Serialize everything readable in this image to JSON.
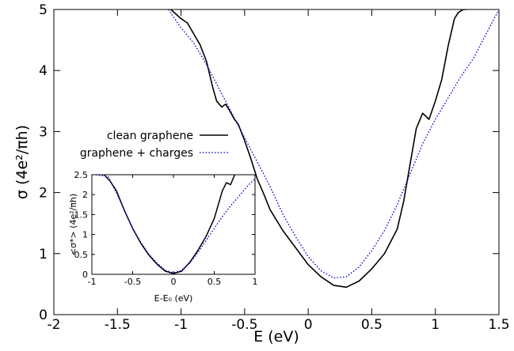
{
  "chart_data": [
    {
      "type": "line",
      "panel": "main",
      "xlabel": "E (eV)",
      "ylabel": "σ (4e²/πh)",
      "xlim": [
        -2,
        1.5
      ],
      "ylim": [
        0,
        5
      ],
      "xticks": [
        -2,
        -1.5,
        -1,
        -0.5,
        0,
        0.5,
        1,
        1.5
      ],
      "xtick_labels": [
        "-2",
        "-1.5",
        "-1",
        "-0.5",
        "0",
        "0.5",
        "1",
        "1.5"
      ],
      "yticks": [
        0,
        1,
        2,
        3,
        4,
        5
      ],
      "ytick_labels": [
        "0",
        "1",
        "2",
        "3",
        "4",
        "5"
      ],
      "grid": false,
      "legend": {
        "placement": "left-middle",
        "entries": [
          "clean graphene",
          "graphene + charges"
        ]
      },
      "series": [
        {
          "name": "clean graphene",
          "style": "solid",
          "color": "#000000",
          "x": [
            -1.08,
            -1.0,
            -0.95,
            -0.9,
            -0.85,
            -0.8,
            -0.75,
            -0.72,
            -0.68,
            -0.65,
            -0.62,
            -0.58,
            -0.55,
            -0.5,
            -0.45,
            -0.4,
            -0.35,
            -0.3,
            -0.2,
            -0.1,
            0.0,
            0.1,
            0.2,
            0.3,
            0.4,
            0.5,
            0.6,
            0.7,
            0.75,
            0.8,
            0.85,
            0.9,
            0.95,
            1.0,
            1.05,
            1.1,
            1.15,
            1.18,
            1.22,
            1.25
          ],
          "y": [
            5.0,
            4.85,
            4.78,
            4.6,
            4.42,
            4.15,
            3.72,
            3.5,
            3.4,
            3.45,
            3.35,
            3.2,
            3.12,
            2.85,
            2.55,
            2.22,
            1.98,
            1.72,
            1.38,
            1.1,
            0.82,
            0.62,
            0.48,
            0.45,
            0.55,
            0.75,
            1.0,
            1.4,
            1.85,
            2.45,
            3.05,
            3.3,
            3.2,
            3.5,
            3.85,
            4.4,
            4.85,
            4.95,
            5.0,
            5.0
          ]
        },
        {
          "name": "graphene + charges",
          "style": "dotted",
          "color": "#0000cc",
          "x": [
            -1.1,
            -1.0,
            -0.9,
            -0.8,
            -0.7,
            -0.6,
            -0.5,
            -0.4,
            -0.3,
            -0.2,
            -0.1,
            0.0,
            0.1,
            0.2,
            0.3,
            0.4,
            0.5,
            0.6,
            0.7,
            0.8,
            0.9,
            1.0,
            1.1,
            1.2,
            1.3,
            1.4,
            1.5
          ],
          "y": [
            5.0,
            4.7,
            4.45,
            4.1,
            3.7,
            3.3,
            2.9,
            2.5,
            2.1,
            1.65,
            1.28,
            0.95,
            0.72,
            0.6,
            0.62,
            0.78,
            1.05,
            1.38,
            1.8,
            2.3,
            2.8,
            3.2,
            3.55,
            3.9,
            4.2,
            4.6,
            5.0
          ]
        }
      ]
    },
    {
      "type": "line",
      "panel": "inset",
      "xlabel": "E-E₀ (eV)",
      "ylabel": "<σ*> (4e²/πh)",
      "xlim": [
        -1,
        1
      ],
      "ylim": [
        0,
        2.5
      ],
      "xticks": [
        -1,
        -0.5,
        0,
        0.5,
        1
      ],
      "xtick_labels": [
        "-1",
        "-0.5",
        "0",
        "0.5",
        "1"
      ],
      "yticks": [
        0,
        0.5,
        1,
        1.5,
        2,
        2.5
      ],
      "ytick_labels": [
        "0",
        "0.5",
        "1",
        "1.5",
        "2",
        "2.5"
      ],
      "grid": false,
      "series": [
        {
          "style": "solid",
          "color": "#000000",
          "x": [
            -0.85,
            -0.78,
            -0.7,
            -0.6,
            -0.5,
            -0.4,
            -0.3,
            -0.2,
            -0.1,
            0.0,
            0.1,
            0.2,
            0.3,
            0.4,
            0.5,
            0.6,
            0.65,
            0.7,
            0.75
          ],
          "y": [
            2.5,
            2.35,
            2.1,
            1.6,
            1.15,
            0.78,
            0.48,
            0.25,
            0.08,
            0.02,
            0.08,
            0.3,
            0.6,
            0.95,
            1.4,
            2.1,
            2.3,
            2.25,
            2.5
          ]
        },
        {
          "style": "dotted",
          "color": "#0000cc",
          "x": [
            -0.95,
            -0.8,
            -0.7,
            -0.6,
            -0.5,
            -0.4,
            -0.3,
            -0.2,
            -0.1,
            0.0,
            0.1,
            0.2,
            0.3,
            0.4,
            0.5,
            0.6,
            0.7,
            0.8,
            0.9,
            1.0
          ],
          "y": [
            2.5,
            2.45,
            2.05,
            1.6,
            1.15,
            0.8,
            0.5,
            0.28,
            0.1,
            0.04,
            0.1,
            0.28,
            0.55,
            0.85,
            1.15,
            1.45,
            1.72,
            1.95,
            2.2,
            2.4
          ]
        }
      ]
    }
  ]
}
